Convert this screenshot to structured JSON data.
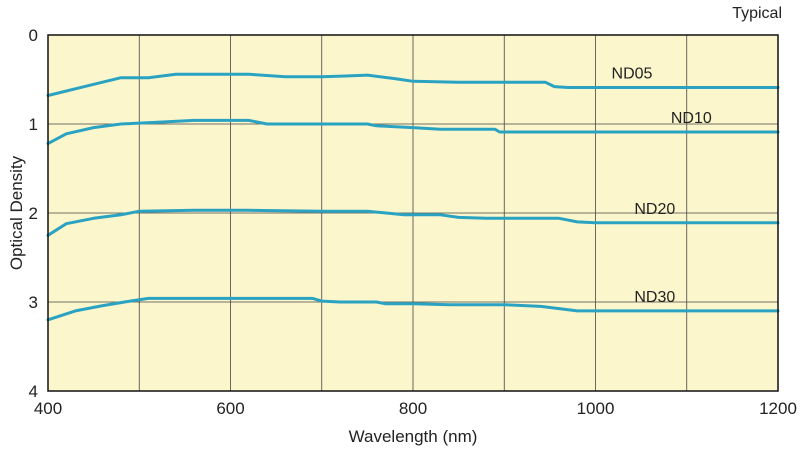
{
  "chart_data": {
    "type": "line",
    "title": "",
    "note": "Typical",
    "xlabel": "Wavelength (nm)",
    "ylabel": "Optical Density",
    "xlim": [
      400,
      1200
    ],
    "ylim": [
      0,
      4
    ],
    "y_inverted": true,
    "xticks": [
      400,
      600,
      800,
      1000,
      1200
    ],
    "yticks": [
      0,
      1,
      2,
      3,
      4
    ],
    "x_grid": [
      400,
      500,
      600,
      700,
      800,
      900,
      1000,
      1100,
      1200
    ],
    "grid": true,
    "colors": {
      "plot_bg": "#fcf6cc",
      "line": "#2aa3c2",
      "grid": "#444444",
      "frame": "#111111"
    },
    "series": [
      {
        "name": "ND05",
        "x": [
          400,
          440,
          480,
          510,
          540,
          580,
          620,
          660,
          700,
          730,
          750,
          780,
          800,
          850,
          900,
          945,
          955,
          970,
          1000,
          1100,
          1200
        ],
        "y": [
          0.68,
          0.58,
          0.48,
          0.48,
          0.44,
          0.44,
          0.44,
          0.47,
          0.47,
          0.46,
          0.45,
          0.49,
          0.52,
          0.53,
          0.53,
          0.53,
          0.58,
          0.59,
          0.59,
          0.59,
          0.59
        ]
      },
      {
        "name": "ND10",
        "x": [
          400,
          420,
          450,
          480,
          500,
          520,
          560,
          620,
          640,
          660,
          700,
          750,
          760,
          800,
          830,
          890,
          895,
          920,
          1000,
          1100,
          1200
        ],
        "y": [
          1.22,
          1.11,
          1.04,
          1.0,
          0.99,
          0.98,
          0.96,
          0.96,
          1.0,
          1.0,
          1.0,
          1.0,
          1.02,
          1.04,
          1.06,
          1.06,
          1.09,
          1.09,
          1.09,
          1.09,
          1.09
        ]
      },
      {
        "name": "ND20",
        "x": [
          400,
          420,
          450,
          480,
          500,
          560,
          620,
          700,
          750,
          790,
          830,
          850,
          880,
          960,
          980,
          1000,
          1100,
          1200
        ],
        "y": [
          2.25,
          2.12,
          2.06,
          2.02,
          1.98,
          1.97,
          1.97,
          1.98,
          1.98,
          2.02,
          2.02,
          2.05,
          2.06,
          2.06,
          2.1,
          2.11,
          2.11,
          2.11
        ]
      },
      {
        "name": "ND30",
        "x": [
          400,
          430,
          460,
          490,
          510,
          550,
          600,
          650,
          690,
          700,
          720,
          760,
          770,
          800,
          840,
          900,
          940,
          980,
          1000,
          1100,
          1200
        ],
        "y": [
          3.2,
          3.1,
          3.04,
          2.99,
          2.96,
          2.96,
          2.96,
          2.96,
          2.96,
          2.99,
          3.0,
          3.0,
          3.02,
          3.02,
          3.03,
          3.03,
          3.05,
          3.1,
          3.1,
          3.1,
          3.1
        ]
      }
    ]
  }
}
